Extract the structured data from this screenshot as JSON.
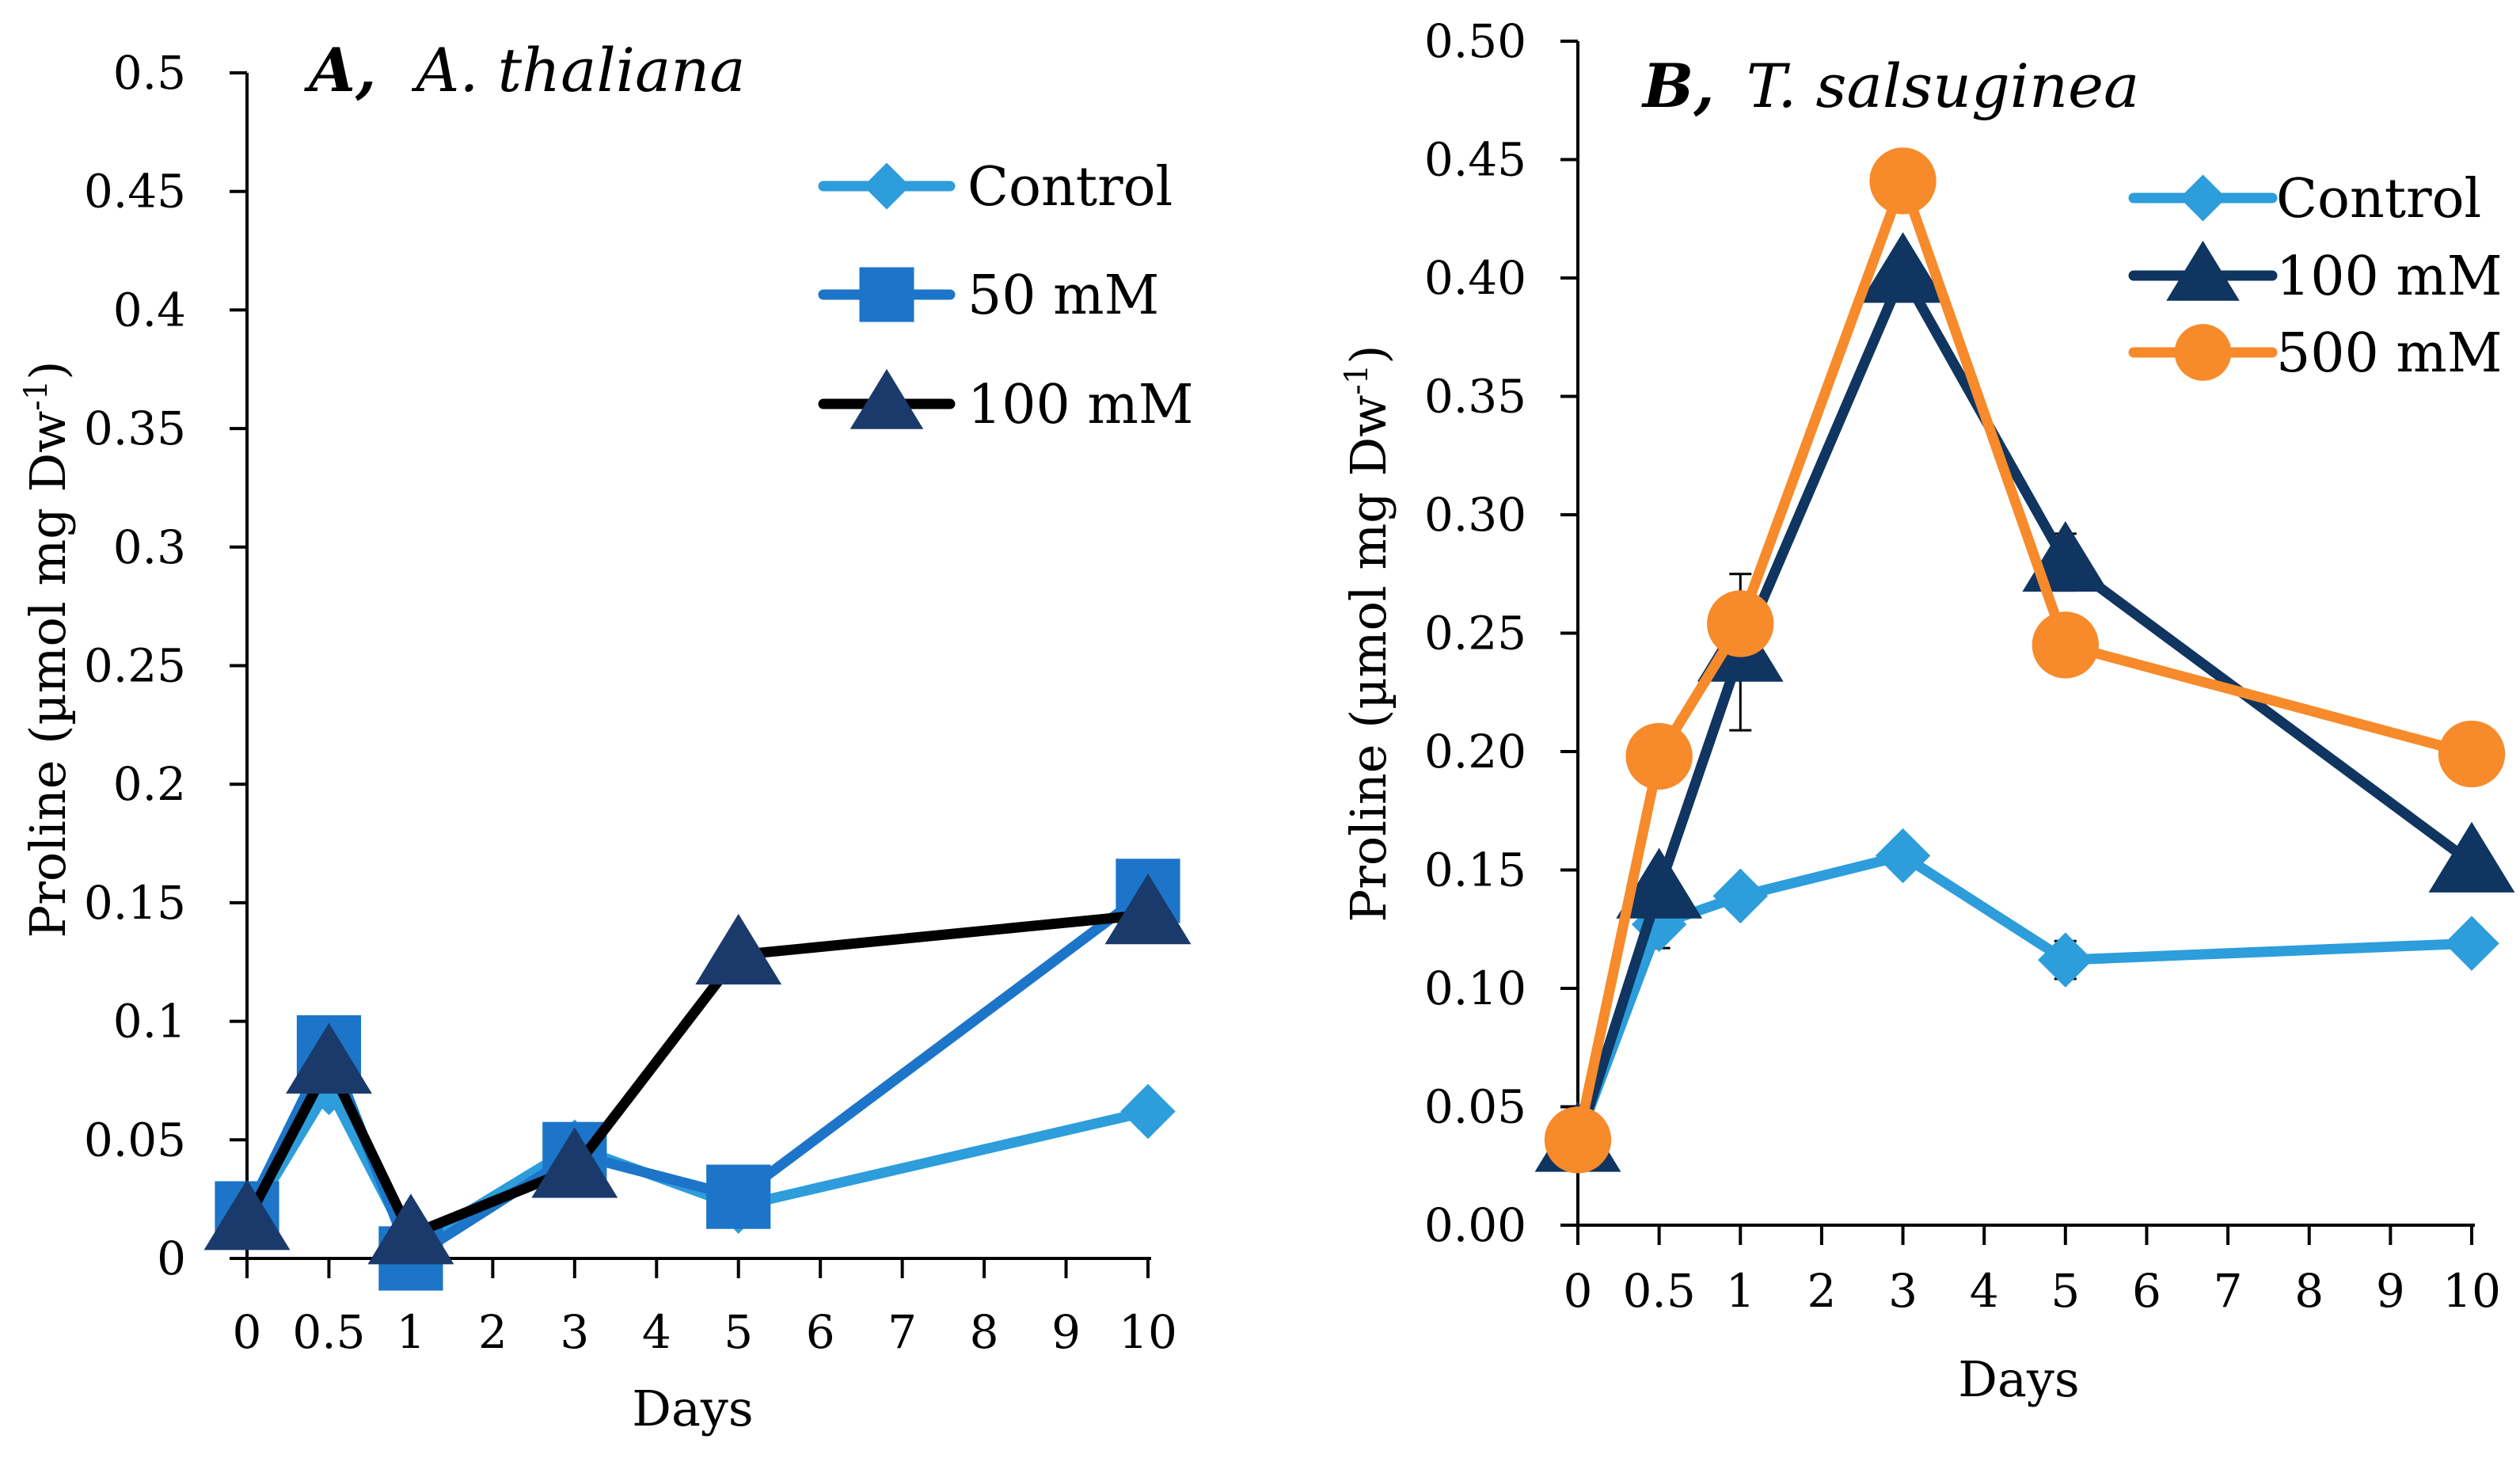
{
  "figure": "Proline content over days in two species",
  "chart_data": [
    {
      "type": "line",
      "panel_letter": "A,",
      "title": "A. thaliana",
      "xlabel": "Days",
      "ylabel": "Proline (µmol mg Dw",
      "ylabel_sup": "-1",
      "ylabel_close": ")",
      "categories": [
        "0",
        "0.5",
        "1",
        "2",
        "3",
        "4",
        "5",
        "6",
        "7",
        "8",
        "9",
        "10"
      ],
      "ylim": [
        0,
        0.5
      ],
      "yticks": [
        "0",
        "0.05",
        "0.1",
        "0.15",
        "0.2",
        "0.25",
        "0.3",
        "0.35",
        "0.4",
        "0.45",
        "0.5"
      ],
      "legend_position": "top-right",
      "series": [
        {
          "name": "Control",
          "color": "#2d9ddb",
          "marker": "diamond",
          "x": [
            "0",
            "0.5",
            "1",
            "3",
            "5",
            "10"
          ],
          "values": [
            0.015,
            0.072,
            0.005,
            0.047,
            0.022,
            0.062
          ],
          "errors": [
            0,
            0.004,
            0,
            0.003,
            0.006,
            0.002
          ]
        },
        {
          "name": "50 mM",
          "color": "#1c75c8",
          "marker": "square",
          "x": [
            "0",
            "0.5",
            "1",
            "3",
            "5",
            "10"
          ],
          "values": [
            0.019,
            0.089,
            0,
            0.044,
            0.026,
            0.155
          ],
          "errors": [
            0,
            0.004,
            0,
            0.003,
            0.004,
            0.004
          ]
        },
        {
          "name": "100 mM",
          "color": "#000000",
          "marker_color": "#1a3a6b",
          "marker": "triangle",
          "x": [
            "0",
            "0.5",
            "1",
            "3",
            "5",
            "10"
          ],
          "values": [
            0.016,
            0.082,
            0.01,
            0.038,
            0.128,
            0.145
          ],
          "errors": [
            0,
            0.004,
            0.002,
            0.003,
            0.008,
            0.004
          ]
        }
      ]
    },
    {
      "type": "line",
      "panel_letter": "B,",
      "title": "T. salsuginea",
      "xlabel": "Days",
      "ylabel": "Proline (µmol mg Dw",
      "ylabel_sup": "-1",
      "ylabel_close": ")",
      "categories": [
        "0",
        "0.5",
        "1",
        "2",
        "3",
        "4",
        "5",
        "6",
        "7",
        "8",
        "9",
        "10"
      ],
      "ylim": [
        0,
        0.5
      ],
      "yticks": [
        "0.00",
        "0.05",
        "0.10",
        "0.15",
        "0.20",
        "0.25",
        "0.30",
        "0.35",
        "0.40",
        "0.45",
        "0.50"
      ],
      "legend_position": "top-right",
      "series": [
        {
          "name": "Control",
          "color": "#2d9ddb",
          "marker": "diamond",
          "x": [
            "0",
            "0.5",
            "1",
            "3",
            "5",
            "10"
          ],
          "values": [
            0.036,
            0.127,
            0.139,
            0.156,
            0.112,
            0.119
          ],
          "errors": [
            0,
            0.01,
            0.004,
            0.004,
            0.008,
            0.003
          ]
        },
        {
          "name": "100 mM",
          "color": "#0f3560",
          "marker": "triangle",
          "x": [
            "0",
            "0.5",
            "1",
            "3",
            "5",
            "10"
          ],
          "values": [
            0.035,
            0.142,
            0.242,
            0.402,
            0.28,
            0.153
          ],
          "errors": [
            0,
            0.006,
            0.033,
            0.007,
            0.012,
            0.004
          ]
        },
        {
          "name": "500 mM",
          "color": "#f78a2a",
          "marker": "circle",
          "x": [
            "0",
            "0.5",
            "1",
            "3",
            "5",
            "10"
          ],
          "values": [
            0.036,
            0.198,
            0.254,
            0.441,
            0.245,
            0.199
          ],
          "errors": [
            0,
            0.005,
            0.006,
            0.004,
            0.004,
            0.003
          ]
        }
      ]
    }
  ]
}
